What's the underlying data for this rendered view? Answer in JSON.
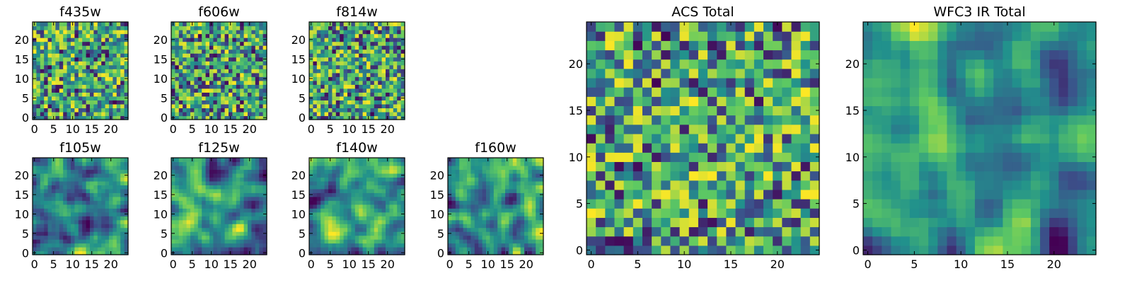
{
  "figure": {
    "colormap": "viridis",
    "colors": [
      "#440154",
      "#3b528b",
      "#21918c",
      "#5ec962",
      "#fde725"
    ]
  },
  "chart_data": [
    {
      "type": "heatmap",
      "title": "f435w",
      "grid_size": 25,
      "value_range": [
        0,
        1
      ],
      "xticks": [
        "0",
        "5",
        "10",
        "15",
        "20"
      ],
      "yticks": [
        "0",
        "5",
        "10",
        "15",
        "20"
      ],
      "style": "noise",
      "seed": 11
    },
    {
      "type": "heatmap",
      "title": "f606w",
      "grid_size": 25,
      "value_range": [
        0,
        1
      ],
      "xticks": [
        "0",
        "5",
        "10",
        "15",
        "20"
      ],
      "yticks": [
        "0",
        "5",
        "10",
        "15",
        "20"
      ],
      "style": "noise",
      "seed": 23
    },
    {
      "type": "heatmap",
      "title": "f814w",
      "grid_size": 25,
      "value_range": [
        0,
        1
      ],
      "xticks": [
        "0",
        "5",
        "10",
        "15",
        "20"
      ],
      "yticks": [
        "0",
        "5",
        "10",
        "15",
        "20"
      ],
      "style": "noise",
      "seed": 37
    },
    {
      "type": "heatmap",
      "title": "f105w",
      "grid_size": 25,
      "value_range": [
        0,
        1
      ],
      "xticks": [
        "0",
        "5",
        "10",
        "15",
        "20"
      ],
      "yticks": [
        "0",
        "5",
        "10",
        "15",
        "20"
      ],
      "style": "smooth",
      "seed": 41
    },
    {
      "type": "heatmap",
      "title": "f125w",
      "grid_size": 25,
      "value_range": [
        0,
        1
      ],
      "xticks": [
        "0",
        "5",
        "10",
        "15",
        "20"
      ],
      "yticks": [
        "0",
        "5",
        "10",
        "15",
        "20"
      ],
      "style": "smooth",
      "seed": 53
    },
    {
      "type": "heatmap",
      "title": "f140w",
      "grid_size": 25,
      "value_range": [
        0,
        1
      ],
      "xticks": [
        "0",
        "5",
        "10",
        "15",
        "20"
      ],
      "yticks": [
        "0",
        "5",
        "10",
        "15",
        "20"
      ],
      "style": "smooth",
      "seed": 67
    },
    {
      "type": "heatmap",
      "title": "f160w",
      "grid_size": 25,
      "value_range": [
        0,
        1
      ],
      "xticks": [
        "0",
        "5",
        "10",
        "15",
        "20"
      ],
      "yticks": [
        "0",
        "5",
        "10",
        "15",
        "20"
      ],
      "style": "smooth",
      "seed": 79
    },
    {
      "type": "heatmap",
      "title": "ACS Total",
      "grid_size": 25,
      "value_range": [
        0,
        1
      ],
      "xticks": [
        "0",
        "5",
        "10",
        "15",
        "20"
      ],
      "yticks": [
        "0",
        "5",
        "10",
        "15",
        "20"
      ],
      "style": "noise",
      "seed": 97
    },
    {
      "type": "heatmap",
      "title": "WFC3 IR Total",
      "grid_size": 25,
      "value_range": [
        0,
        1
      ],
      "xticks": [
        "0",
        "5",
        "10",
        "15",
        "20"
      ],
      "yticks": [
        "0",
        "5",
        "10",
        "15",
        "20"
      ],
      "style": "smooth",
      "seed": 131
    }
  ]
}
